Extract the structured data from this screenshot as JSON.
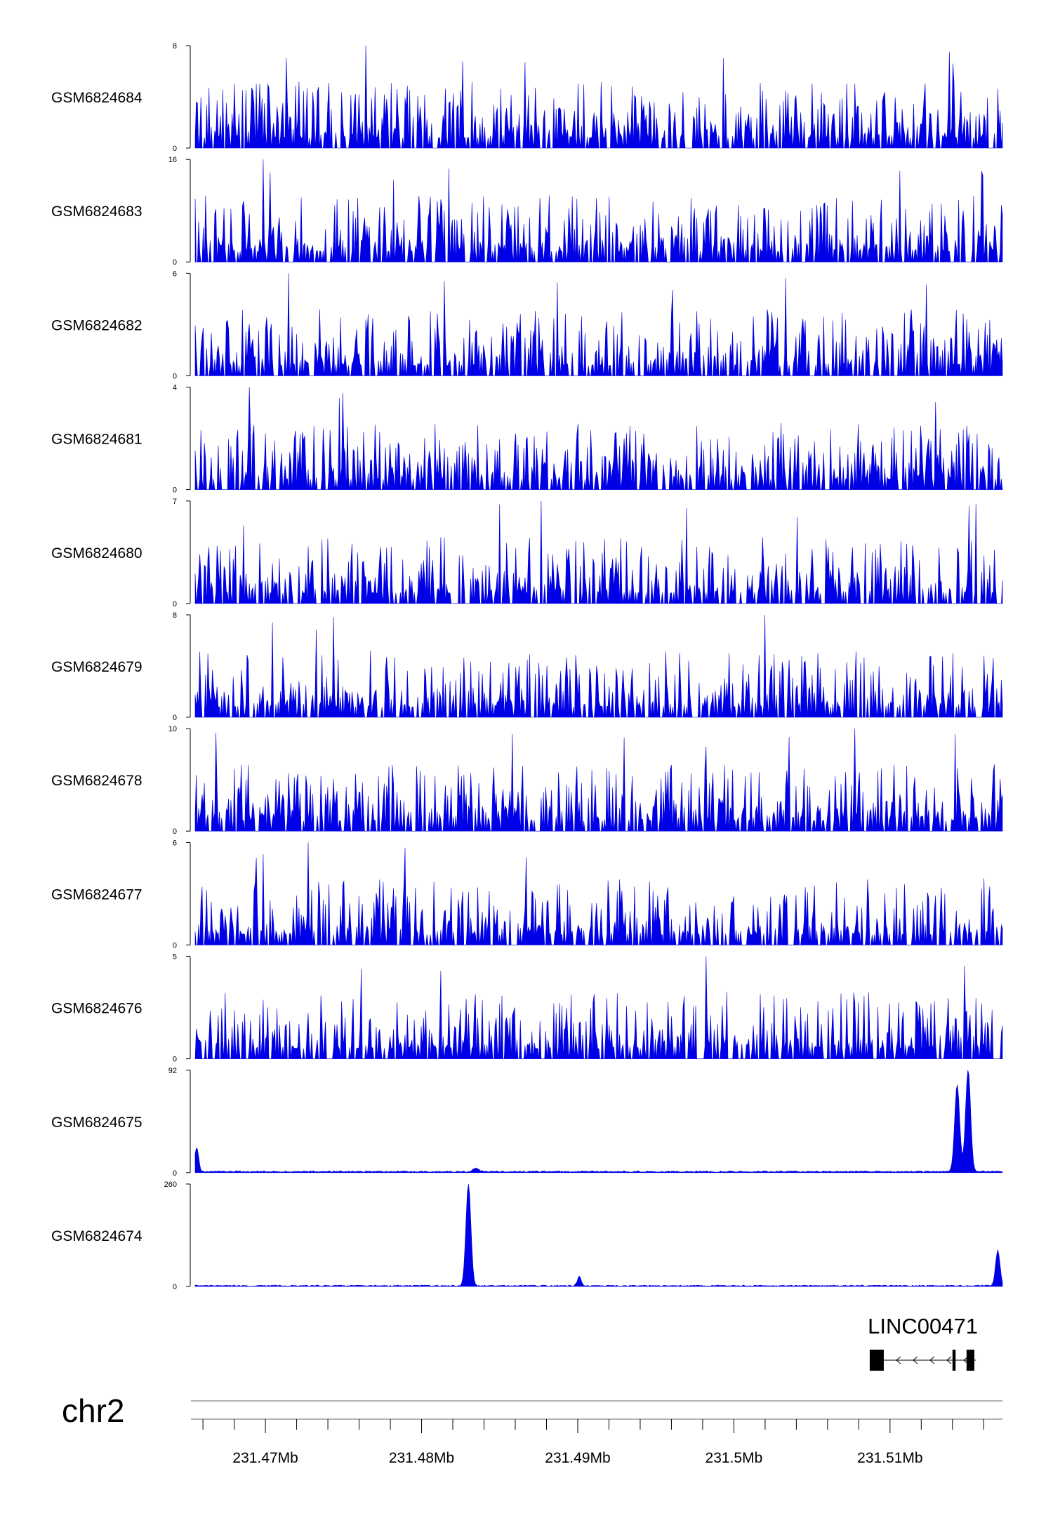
{
  "chart_data": {
    "type": "area",
    "title": "",
    "colors": {
      "signal": "#0000e6",
      "axis": "#000000",
      "gene": "#000000"
    },
    "x_range": [
      231.4655,
      231.5172
    ],
    "x_unit": "Mb",
    "x_ticks": [
      {
        "value": 231.47,
        "label": "231.47Mb"
      },
      {
        "value": 231.48,
        "label": "231.48Mb"
      },
      {
        "value": 231.49,
        "label": "231.49Mb"
      },
      {
        "value": 231.5,
        "label": "231.5Mb"
      },
      {
        "value": 231.51,
        "label": "231.51Mb"
      }
    ],
    "chromosome": "chr2",
    "gene": {
      "name": "LINC00471",
      "strand": "-",
      "start": 231.5087,
      "end": 231.5155,
      "exons": [
        [
          231.5087,
          231.5096
        ],
        [
          231.514,
          231.5142
        ],
        [
          231.5149,
          231.5154
        ]
      ]
    },
    "tracks": [
      {
        "name": "GSM6824684",
        "ylim": [
          0,
          8
        ],
        "ytick_labels": [
          "8",
          "0"
        ]
      },
      {
        "name": "GSM6824683",
        "ylim": [
          0,
          16
        ],
        "ytick_labels": [
          "16",
          "0"
        ]
      },
      {
        "name": "GSM6824682",
        "ylim": [
          0,
          6
        ],
        "ytick_labels": [
          "6",
          "0"
        ]
      },
      {
        "name": "GSM6824681",
        "ylim": [
          0,
          4
        ],
        "ytick_labels": [
          "4",
          "0"
        ]
      },
      {
        "name": "GSM6824680",
        "ylim": [
          0,
          7
        ],
        "ytick_labels": [
          "7",
          "0"
        ]
      },
      {
        "name": "GSM6824679",
        "ylim": [
          0,
          8
        ],
        "ytick_labels": [
          "8",
          "0"
        ]
      },
      {
        "name": "GSM6824678",
        "ylim": [
          0,
          10
        ],
        "ytick_labels": [
          "10",
          "0"
        ]
      },
      {
        "name": "GSM6824677",
        "ylim": [
          0,
          6
        ],
        "ytick_labels": [
          "6",
          "0"
        ]
      },
      {
        "name": "GSM6824676",
        "ylim": [
          0,
          5
        ],
        "ytick_labels": [
          "5",
          "0"
        ]
      },
      {
        "name": "GSM6824675",
        "ylim": [
          0,
          92
        ],
        "ytick_labels": [
          "92",
          "0"
        ],
        "baseline": 1,
        "noise": 1.2,
        "peaks": [
          {
            "x": 231.4656,
            "height": 22,
            "width": 0.00012
          },
          {
            "x": 231.4835,
            "height": 3,
            "width": 0.0002
          },
          {
            "x": 231.5143,
            "height": 78,
            "width": 0.00016
          },
          {
            "x": 231.515,
            "height": 92,
            "width": 0.00016
          }
        ]
      },
      {
        "name": "GSM6824674",
        "ylim": [
          0,
          260
        ],
        "ytick_labels": [
          "260",
          "0"
        ],
        "baseline": 1.5,
        "noise": 2,
        "peaks": [
          {
            "x": 231.483,
            "height": 260,
            "width": 0.00016
          },
          {
            "x": 231.4901,
            "height": 24,
            "width": 0.00012
          },
          {
            "x": 231.5169,
            "height": 90,
            "width": 0.00014
          }
        ]
      }
    ]
  }
}
